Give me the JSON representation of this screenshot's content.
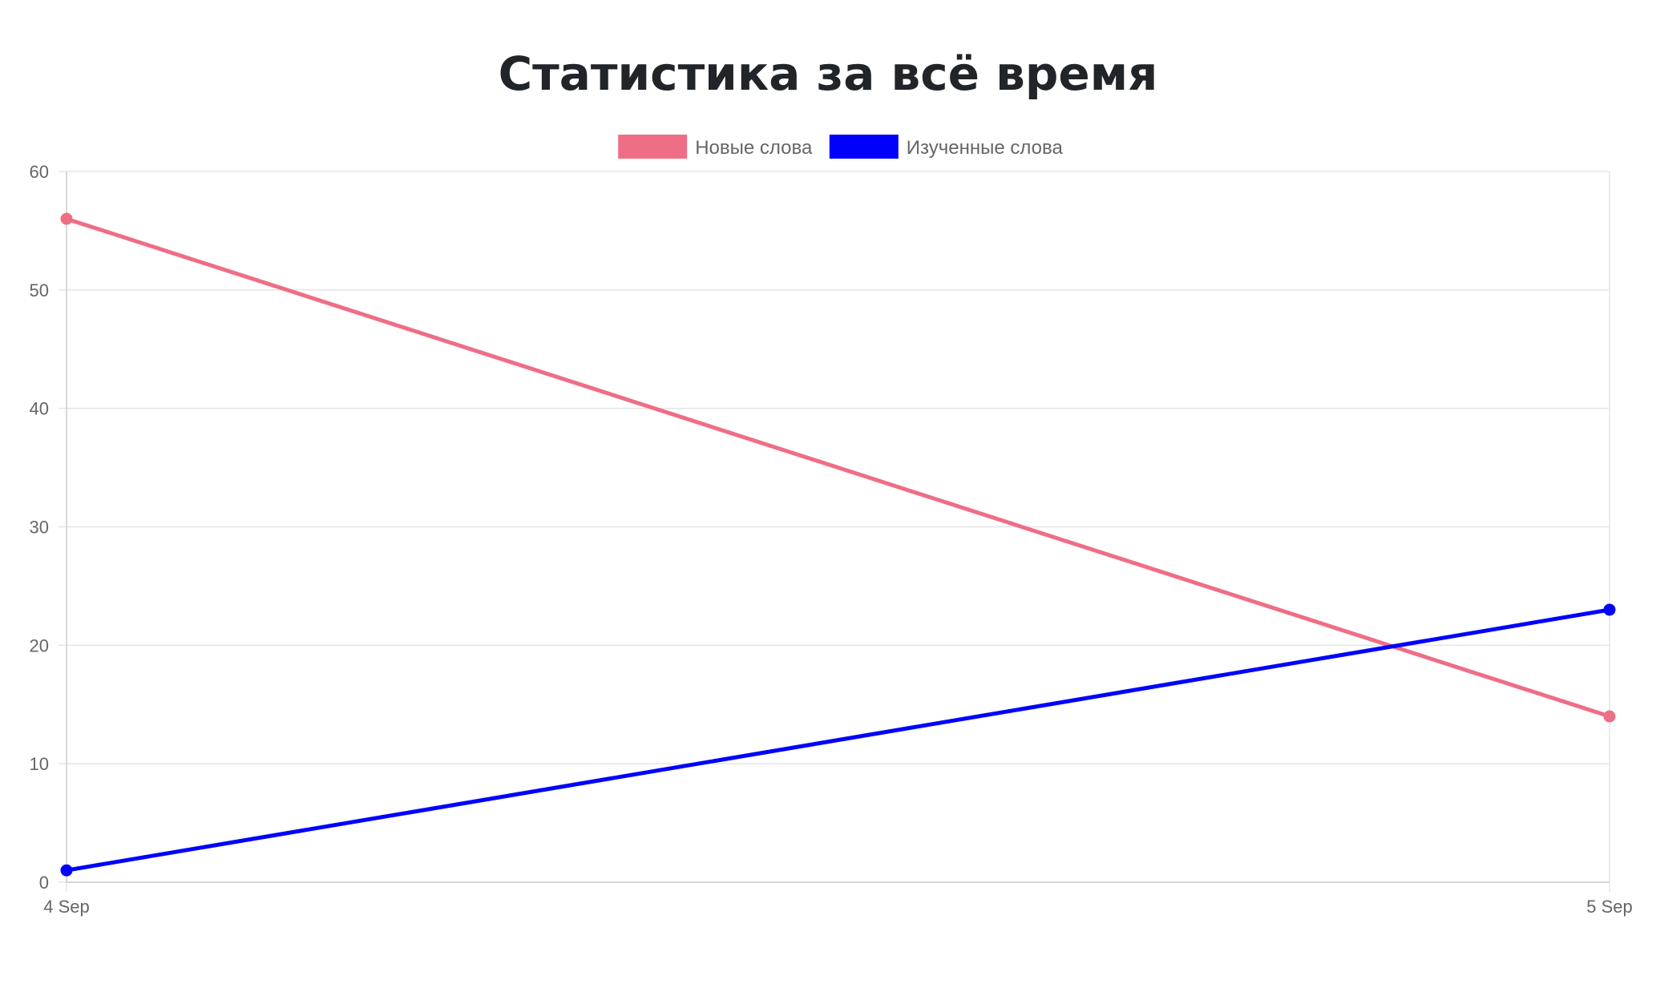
{
  "chart_data": {
    "type": "line",
    "title": "Статистика за всё время",
    "categories": [
      "4 Sep",
      "5 Sep"
    ],
    "series": [
      {
        "name": "Новые слова",
        "values": [
          56,
          14
        ],
        "color": "#ee6e85"
      },
      {
        "name": "Изученные слова",
        "values": [
          1,
          23
        ],
        "color": "#0000ff"
      }
    ],
    "ylim": [
      0,
      60
    ],
    "yticks": [
      0,
      10,
      20,
      30,
      40,
      50,
      60
    ],
    "xlabel": "",
    "ylabel": "",
    "grid": true,
    "legend_position": "top-center"
  }
}
